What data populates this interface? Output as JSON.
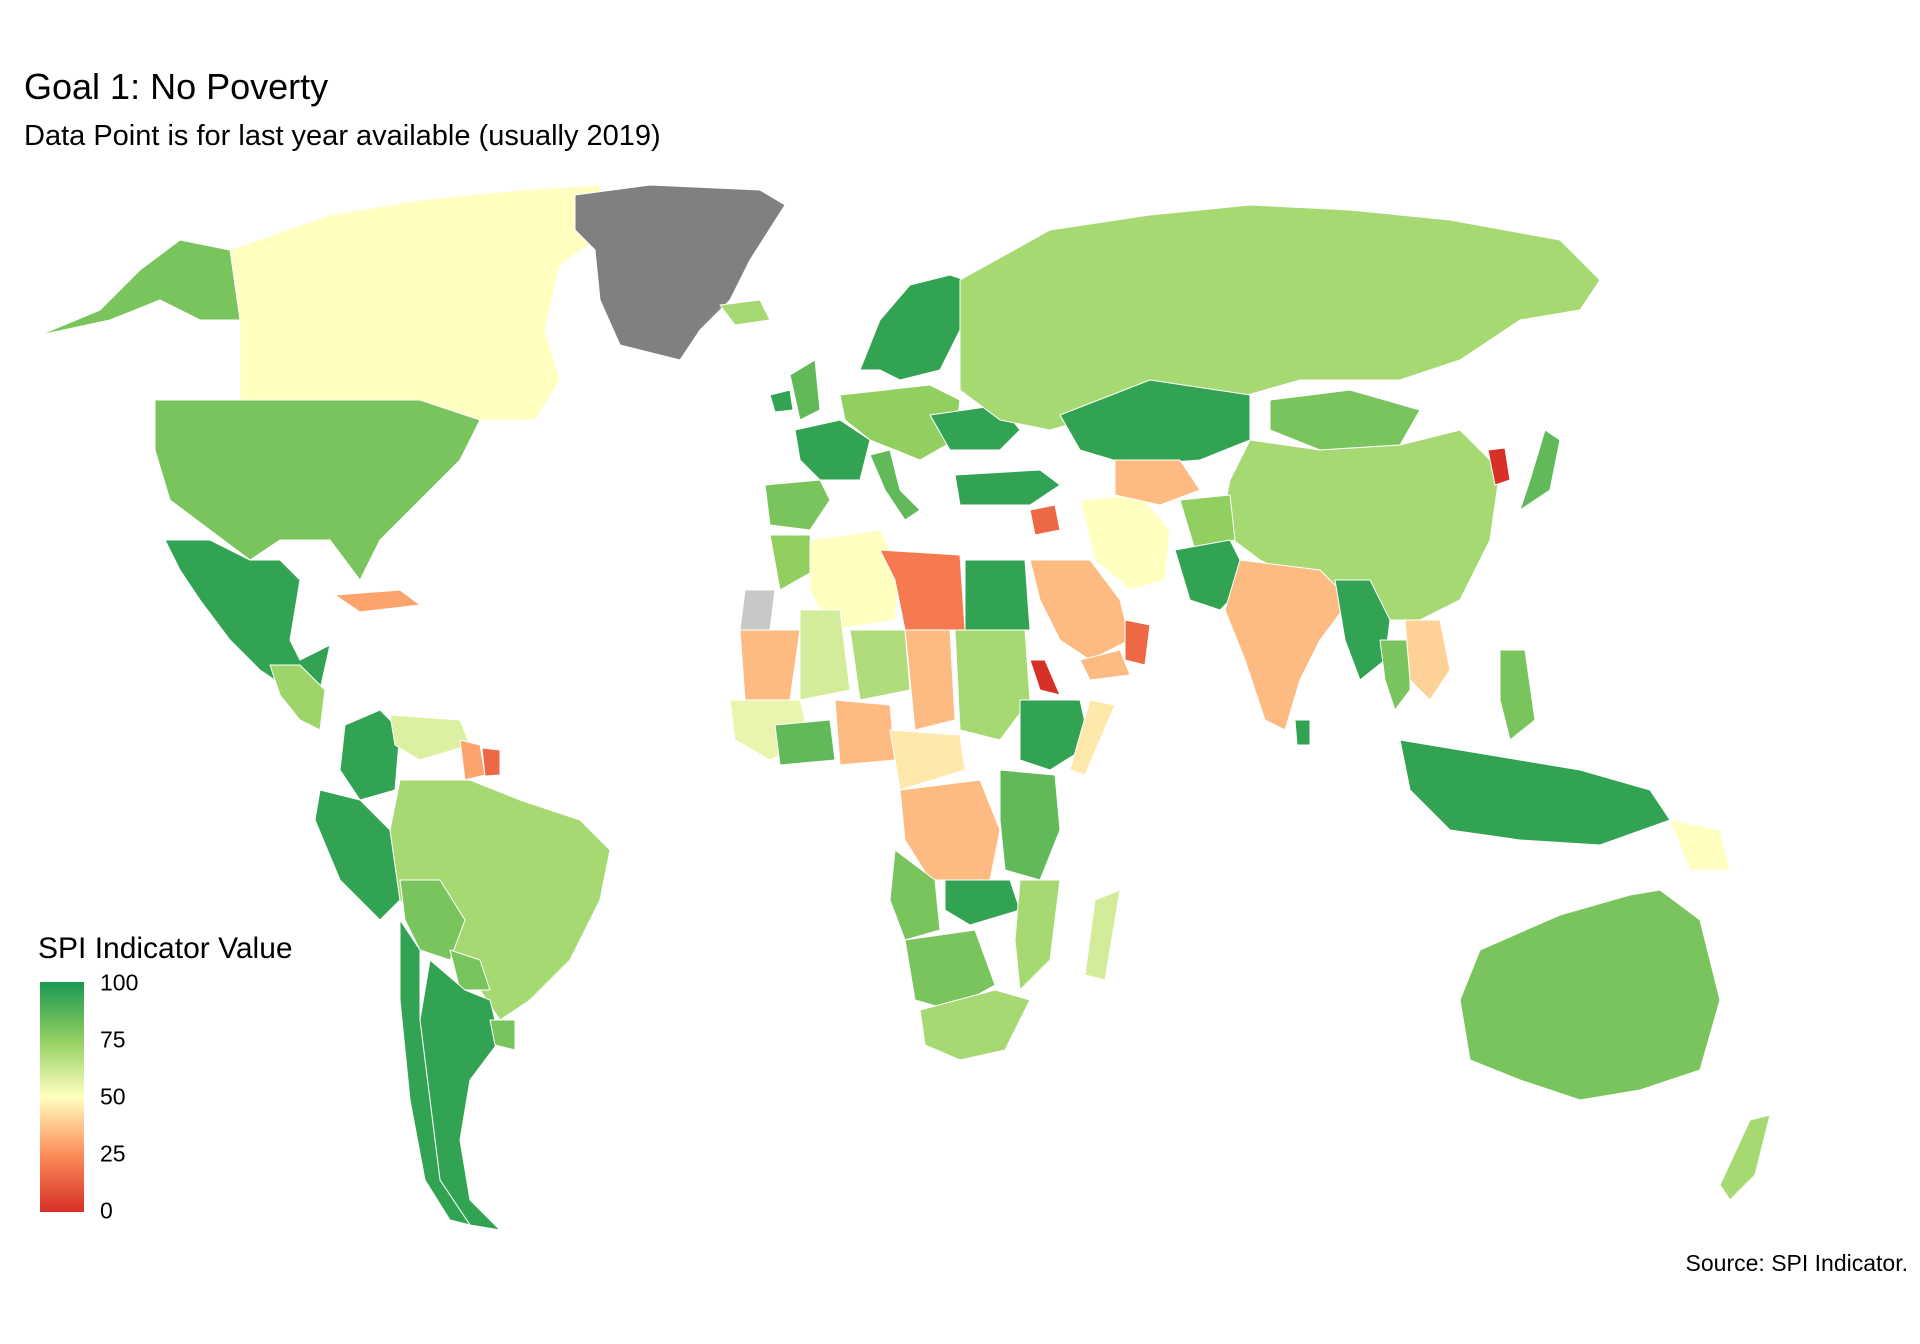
{
  "header": {
    "title": "Goal 1: No Poverty",
    "subtitle": "Data Point is for last year available (usually 2019)"
  },
  "legend": {
    "title": "SPI Indicator Value",
    "ticks": [
      "100",
      "75",
      "50",
      "25",
      "0"
    ],
    "scale_colors": [
      "#1a9850",
      "#91cf60",
      "#ffffbf",
      "#fc8d59",
      "#d73027"
    ]
  },
  "caption": {
    "source": "Source: SPI Indicator."
  },
  "map_data": {
    "type": "choropleth",
    "value_range": [
      0,
      100
    ],
    "no_data_color": "#c8c8c8",
    "regions": [
      {
        "name": "Canada",
        "value": 50
      },
      {
        "name": "Alaska",
        "value": 80
      },
      {
        "name": "United States",
        "value": 80
      },
      {
        "name": "Greenland",
        "value": null
      },
      {
        "name": "Mexico",
        "value": 95
      },
      {
        "name": "Central America",
        "value": 72
      },
      {
        "name": "Caribbean",
        "value": 30
      },
      {
        "name": "Colombia",
        "value": 95
      },
      {
        "name": "Venezuela",
        "value": 58
      },
      {
        "name": "Guyana",
        "value": 30
      },
      {
        "name": "Suriname",
        "value": 15
      },
      {
        "name": "Peru",
        "value": 95
      },
      {
        "name": "Brazil",
        "value": 70
      },
      {
        "name": "Bolivia",
        "value": 80
      },
      {
        "name": "Paraguay",
        "value": 80
      },
      {
        "name": "Argentina",
        "value": 95
      },
      {
        "name": "Chile",
        "value": 95
      },
      {
        "name": "Uruguay",
        "value": 80
      },
      {
        "name": "Iceland",
        "value": 70
      },
      {
        "name": "Norway/Sweden/Finland",
        "value": 95
      },
      {
        "name": "United Kingdom",
        "value": 85
      },
      {
        "name": "Ireland",
        "value": 95
      },
      {
        "name": "France",
        "value": 95
      },
      {
        "name": "Spain/Portugal",
        "value": 80
      },
      {
        "name": "Central Europe",
        "value": 75
      },
      {
        "name": "Italy",
        "value": 85
      },
      {
        "name": "Ukraine",
        "value": 95
      },
      {
        "name": "Turkey",
        "value": 95
      },
      {
        "name": "Russia",
        "value": 70
      },
      {
        "name": "Kazakhstan",
        "value": 95
      },
      {
        "name": "Mongolia",
        "value": 80
      },
      {
        "name": "China",
        "value": 70
      },
      {
        "name": "North Korea",
        "value": 0
      },
      {
        "name": "Japan",
        "value": 85
      },
      {
        "name": "Iran",
        "value": 50
      },
      {
        "name": "Turkmenistan/Uzbekistan",
        "value": 35
      },
      {
        "name": "Afghanistan",
        "value": 75
      },
      {
        "name": "Pakistan",
        "value": 95
      },
      {
        "name": "India",
        "value": 35
      },
      {
        "name": "Syria",
        "value": 15
      },
      {
        "name": "Saudi Arabia",
        "value": 35
      },
      {
        "name": "Yemen",
        "value": 35
      },
      {
        "name": "Oman",
        "value": 15
      },
      {
        "name": "Bangladesh/Myanmar",
        "value": 95
      },
      {
        "name": "Thailand",
        "value": 80
      },
      {
        "name": "Laos/Vietnam",
        "value": 40
      },
      {
        "name": "Sri Lanka",
        "value": 95
      },
      {
        "name": "Philippines",
        "value": 80
      },
      {
        "name": "Indonesia",
        "value": 95
      },
      {
        "name": "Papua New Guinea",
        "value": 50
      },
      {
        "name": "Australia",
        "value": 80
      },
      {
        "name": "New Zealand",
        "value": 70
      },
      {
        "name": "Morocco",
        "value": 75
      },
      {
        "name": "Western Sahara",
        "value": null
      },
      {
        "name": "Algeria",
        "value": 50
      },
      {
        "name": "Libya",
        "value": 20
      },
      {
        "name": "Egypt",
        "value": 95
      },
      {
        "name": "Mauritania",
        "value": 35
      },
      {
        "name": "Mali",
        "value": 60
      },
      {
        "name": "Niger",
        "value": 68
      },
      {
        "name": "Chad",
        "value": 35
      },
      {
        "name": "Sudan",
        "value": 70
      },
      {
        "name": "Eritrea",
        "value": 0
      },
      {
        "name": "Ethiopia",
        "value": 95
      },
      {
        "name": "Somalia",
        "value": 45
      },
      {
        "name": "West Africa coast",
        "value": 55
      },
      {
        "name": "Ghana/Cote d'Ivoire",
        "value": 85
      },
      {
        "name": "Nigeria",
        "value": 35
      },
      {
        "name": "Cameroon/CAR",
        "value": 45
      },
      {
        "name": "DR Congo",
        "value": 35
      },
      {
        "name": "Kenya/Tanzania",
        "value": 85
      },
      {
        "name": "Angola",
        "value": 80
      },
      {
        "name": "Zambia",
        "value": 95
      },
      {
        "name": "Mozambique",
        "value": 70
      },
      {
        "name": "Namibia/Botswana",
        "value": 80
      },
      {
        "name": "South Africa",
        "value": 70
      },
      {
        "name": "Madagascar",
        "value": 60
      }
    ]
  }
}
